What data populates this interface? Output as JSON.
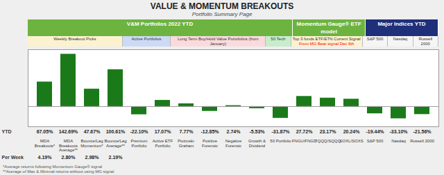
{
  "chart_data": {
    "type": "bar",
    "title": "VALUE & MOMENTUM BREAKOUTS",
    "subtitle": "Portfolio Summary Page",
    "categories": [
      "MDA\nBreakouts*",
      "MDA\nBreakouts\nAverage**",
      "Bounce/Lag\nMomentum*",
      "Bounce/Lag\nAverage**",
      "Premium\nPortfolio",
      "Active ETF\nPortfolio",
      "Piotroski-\nGraham",
      "Positive\nForensic",
      "Negative\nForensic",
      "Growth &\nDividend",
      "50 Portfolio",
      "FNGU/FNGD",
      "TQQQ/SQQQ",
      "SOXL/SOXS",
      "S&P 500",
      "Nasdaq",
      "Russell 2000"
    ],
    "values": [
      67.05,
      142.69,
      47.67,
      100.61,
      -22.1,
      17.07,
      7.77,
      -12.85,
      2.74,
      -5.53,
      -31.87,
      27.72,
      23.17,
      20.24,
      -19.44,
      -33.1,
      -21.56
    ],
    "value_labels": [
      "67.05%",
      "142.69%",
      "47.67%",
      "100.61%",
      "-22.10%",
      "17.07%",
      "7.77%",
      "-12.85%",
      "2.74%",
      "-5.53%",
      "-31.87%",
      "27.72%",
      "23.17%",
      "20.24%",
      "-19.44%",
      "-33.10%",
      "-21.56%"
    ],
    "data_labels": true,
    "value_labels_title": "YTD",
    "per_week_title": "Per Week",
    "per_week_values": [
      4.19,
      2.8,
      2.98,
      2.19
    ],
    "per_week_value_labels": [
      "4.19%",
      "2.80%",
      "2.98%",
      "2.19%"
    ],
    "color": "#1a7a1a",
    "ylim": [
      -55,
      155
    ],
    "grid": false,
    "tick_labels": "x",
    "headers": [
      {
        "text": "V&M Portfolios 2022 YTD",
        "color": "#6db33f"
      },
      {
        "text": "Momentum Gauge® ETF model",
        "color": "#6db33f"
      },
      {
        "text": "Major Indices YTD",
        "color": "#1f2f7a"
      }
    ],
    "subheaders": [
      {
        "text": "Weekly Breakout Picks",
        "color": "#fdf2d0"
      },
      {
        "text": "Active Portfolios",
        "color": "#ccdaf5"
      },
      {
        "text": "Long Term Buy/Hold Value Portofolios (from January)",
        "color": "#fadadd"
      },
      {
        "text": "50 Tech",
        "color": "#c8edcb"
      },
      {
        "text": "Top 3 funds ETF/ETN Current Signal",
        "color": "#fdf2d0"
      },
      {
        "text": "S&P 500",
        "color": "#f5f5f5"
      },
      {
        "text": "Nasdaq",
        "color": "#f5f5f5"
      },
      {
        "text": "Russell 2000",
        "color": "#f5f5f5"
      }
    ],
    "annotations": [
      {
        "text": "From MG Bear signal Dec 6th",
        "color": "red"
      }
    ],
    "footnotes": [
      "*Average returns following Momentum Gauge® signal",
      "**Average of Max & Minimal returns without using MG signal"
    ]
  }
}
